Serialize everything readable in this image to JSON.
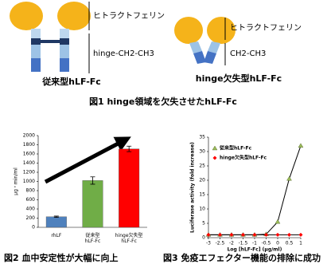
{
  "figure1": {
    "left": {
      "top_label": "ヒトラクトフェリン",
      "bottom_label": "hinge-CH2-CH3",
      "name": "従来型hLF-Fc"
    },
    "right": {
      "top_label": "ヒトラクトフェリン",
      "bottom_label": "CH2-CH3",
      "name": "hinge欠失型hLF-Fc"
    },
    "caption": "図1 hinge領域を欠失させたhLF-Fc"
  },
  "chart_data": [
    {
      "type": "bar",
      "title": "図2 血中安定性が大幅に向上",
      "y_label": "μg・min/ml",
      "categories": [
        "rhLF",
        "従来型\nhLF-Fc",
        "hinge欠失型\nhLF-Fc"
      ],
      "values": [
        230,
        1020,
        1710
      ],
      "errors": [
        15,
        80,
        60
      ],
      "colors": [
        "#4f81bd",
        "#70ad47",
        "#ff0000"
      ],
      "ylim": [
        0,
        2000
      ],
      "yticks": [
        0,
        200,
        400,
        600,
        800,
        1000,
        1200,
        1400,
        1600,
        1800,
        2000
      ]
    },
    {
      "type": "line",
      "title": "図3 免疫エフェクター機能の排除に成功",
      "x_label": "Log [hLF-Fc] (μg/ml)",
      "y_label": "Luciferase activity (fold increase)",
      "x": [
        -3,
        -2.5,
        -2,
        -1.5,
        -1,
        -0.5,
        0,
        0.5,
        1
      ],
      "series": [
        {
          "name": "従来型hLF-Fc",
          "color": "#9bbb59",
          "values": [
            1,
            1,
            1,
            1,
            1,
            1.2,
            5.5,
            20.5,
            32
          ]
        },
        {
          "name": "hinge欠失型hLF-Fc",
          "color": "#ff0000",
          "values": [
            1,
            1,
            1,
            1,
            1,
            1,
            1,
            1,
            1
          ]
        }
      ],
      "xlim": [
        -3,
        1
      ],
      "xticks": [
        -3,
        -2.5,
        -2,
        -1.5,
        -1,
        -0.5,
        0,
        0.5,
        1
      ],
      "ylim": [
        0,
        35
      ],
      "yticks": [
        0,
        5,
        10,
        15,
        20,
        25,
        30,
        35
      ],
      "legend": "upper left"
    }
  ]
}
